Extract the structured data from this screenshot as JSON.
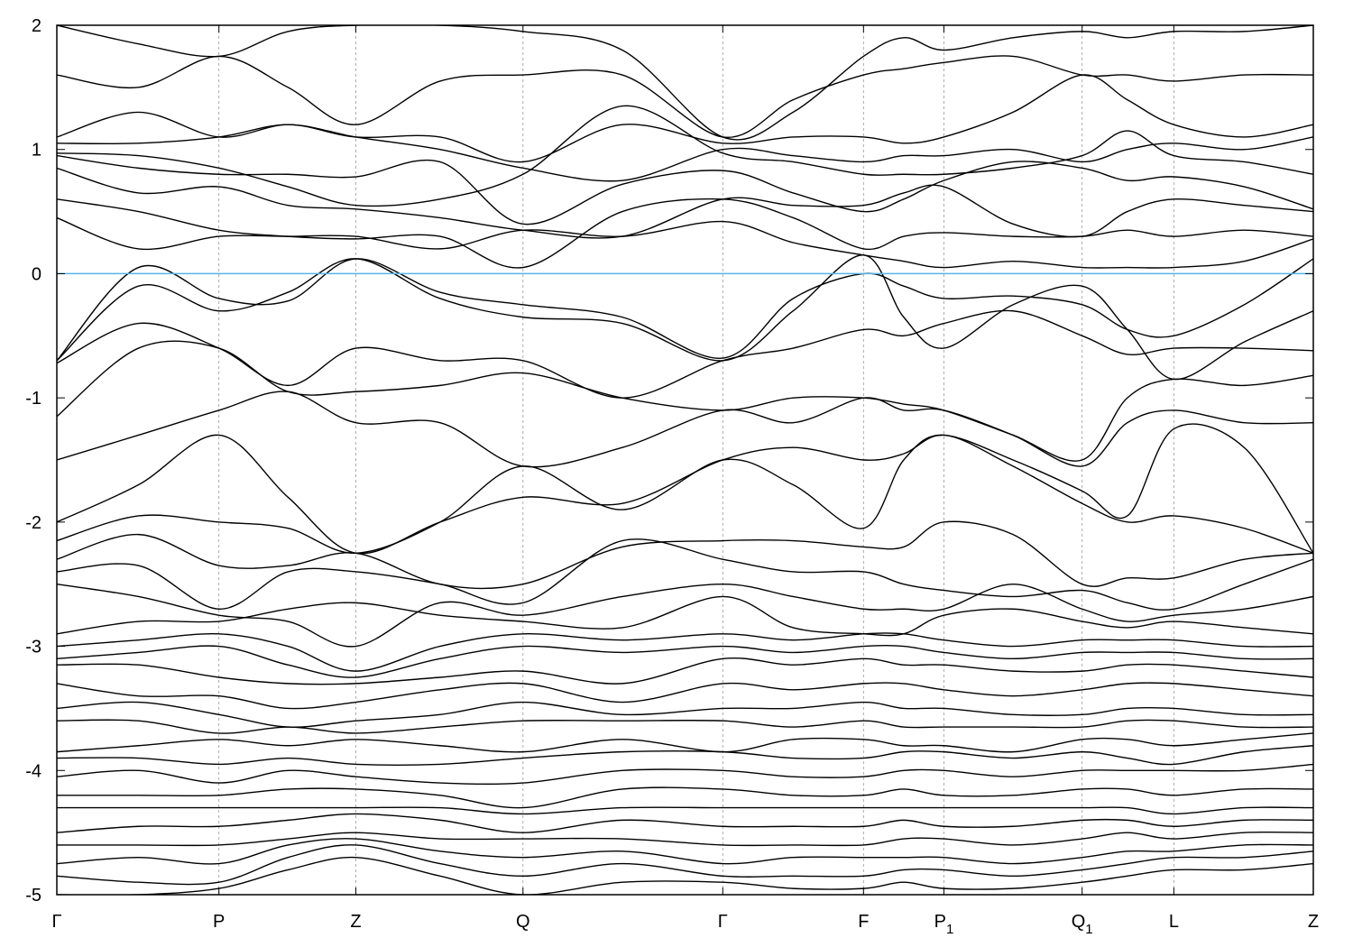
{
  "chart_data": {
    "type": "line",
    "title": "",
    "xlabel": "",
    "ylabel": "",
    "ylim": [
      -5,
      2
    ],
    "yticks": [
      "2",
      "1",
      "0",
      "-1",
      "-2",
      "-3",
      "-4",
      "-5"
    ],
    "ytick_values": [
      2,
      1,
      0,
      -1,
      -2,
      -3,
      -4,
      -5
    ],
    "grid": "vertical dashed lines at high-symmetry points",
    "kpoints": [
      {
        "label": "Γ",
        "sub": "",
        "k": 0
      },
      {
        "label": "P",
        "sub": "",
        "k": 1.29
      },
      {
        "label": "Z",
        "sub": "",
        "k": 2.38
      },
      {
        "label": "Q",
        "sub": "",
        "k": 3.71
      },
      {
        "label": "Γ",
        "sub": "",
        "k": 5.3
      },
      {
        "label": "F",
        "sub": "",
        "k": 6.42
      },
      {
        "label": "P",
        "sub": "1",
        "k": 7.06
      },
      {
        "label": "Q",
        "sub": "1",
        "k": 8.16
      },
      {
        "label": "L",
        "sub": "",
        "k": 8.89
      },
      {
        "label": "Z",
        "sub": "",
        "k": 10.0
      }
    ],
    "fermi_level": 0,
    "colors": {
      "bands": "#000000",
      "fermi_line": "#56b4e9",
      "grid": "#999999"
    },
    "x": [
      0,
      0.65,
      1.29,
      1.84,
      2.38,
      3.05,
      3.71,
      4.5,
      5.3,
      5.86,
      6.42,
      6.74,
      7.06,
      7.61,
      8.16,
      8.52,
      8.89,
      9.45,
      10.0
    ],
    "bands": [
      [
        2.0,
        1.85,
        1.75,
        1.95,
        2.0,
        2.0,
        1.95,
        1.8,
        1.1,
        1.3,
        1.75,
        1.9,
        1.8,
        1.9,
        1.95,
        1.9,
        1.95,
        1.95,
        2.0
      ],
      [
        1.6,
        1.5,
        1.75,
        1.5,
        1.2,
        1.55,
        1.6,
        1.6,
        1.1,
        1.4,
        1.6,
        1.65,
        1.7,
        1.75,
        1.6,
        1.6,
        1.55,
        1.6,
        1.6
      ],
      [
        1.1,
        1.3,
        1.1,
        1.2,
        1.1,
        1.1,
        0.9,
        1.2,
        1.05,
        1.1,
        1.1,
        1.05,
        1.1,
        1.3,
        1.6,
        1.4,
        1.2,
        1.1,
        1.2
      ],
      [
        1.05,
        1.05,
        1.1,
        1.2,
        1.1,
        1.0,
        0.85,
        0.75,
        1.0,
        0.95,
        0.9,
        0.95,
        0.95,
        1.0,
        0.9,
        1.0,
        1.05,
        1.0,
        1.1
      ],
      [
        0.97,
        0.95,
        0.85,
        0.7,
        0.55,
        0.6,
        0.8,
        1.35,
        0.97,
        0.9,
        0.8,
        0.8,
        0.8,
        0.85,
        0.95,
        1.15,
        0.95,
        0.9,
        0.8
      ],
      [
        0.95,
        0.85,
        0.8,
        0.8,
        0.78,
        0.9,
        0.4,
        0.72,
        0.83,
        0.65,
        0.5,
        0.6,
        0.75,
        0.9,
        0.85,
        0.75,
        0.78,
        0.7,
        0.52
      ],
      [
        0.85,
        0.65,
        0.7,
        0.55,
        0.52,
        0.45,
        0.35,
        0.3,
        0.6,
        0.55,
        0.55,
        0.65,
        0.7,
        0.4,
        0.3,
        0.5,
        0.6,
        0.55,
        0.5
      ],
      [
        0.6,
        0.5,
        0.35,
        0.3,
        0.28,
        0.3,
        0.05,
        0.5,
        0.6,
        0.45,
        0.2,
        0.3,
        0.33,
        0.3,
        0.3,
        0.35,
        0.3,
        0.35,
        0.3
      ],
      [
        0.45,
        0.2,
        0.3,
        0.3,
        0.3,
        0.2,
        0.35,
        0.3,
        0.42,
        0.25,
        0.15,
        0.1,
        0.05,
        0.1,
        0.05,
        0.05,
        0.05,
        0.1,
        0.28
      ],
      [
        -0.7,
        0.05,
        -0.2,
        -0.22,
        0.12,
        -0.15,
        -0.25,
        -0.35,
        -0.68,
        -0.2,
        0.0,
        -0.1,
        -0.2,
        -0.18,
        -0.25,
        -0.45,
        -0.5,
        -0.25,
        0.12
      ],
      [
        -0.7,
        -0.1,
        -0.3,
        -0.15,
        0.12,
        -0.2,
        -0.35,
        -0.4,
        -0.7,
        -0.3,
        0.15,
        -0.35,
        -0.6,
        -0.25,
        -0.1,
        -0.45,
        -0.85,
        -0.55,
        -0.3
      ],
      [
        -0.72,
        -0.4,
        -0.6,
        -0.9,
        -0.6,
        -0.7,
        -0.7,
        -1.0,
        -0.7,
        -0.6,
        -0.45,
        -0.5,
        -0.4,
        -0.3,
        -0.5,
        -0.65,
        -0.6,
        -0.6,
        -0.62
      ],
      [
        -1.15,
        -0.6,
        -0.6,
        -0.95,
        -0.95,
        -0.9,
        -0.8,
        -1.0,
        -1.1,
        -1.0,
        -1.0,
        -1.05,
        -1.1,
        -1.3,
        -1.5,
        -1.0,
        -0.85,
        -0.9,
        -0.82
      ],
      [
        -1.5,
        -1.3,
        -1.1,
        -0.95,
        -1.2,
        -1.2,
        -1.55,
        -1.4,
        -1.1,
        -1.2,
        -1.0,
        -1.1,
        -1.1,
        -1.3,
        -1.55,
        -1.2,
        -1.1,
        -1.2,
        -1.2
      ],
      [
        -2.0,
        -1.7,
        -1.3,
        -1.8,
        -2.25,
        -2.0,
        -1.8,
        -1.85,
        -1.5,
        -1.4,
        -1.5,
        -1.45,
        -1.3,
        -1.5,
        -1.75,
        -1.95,
        -1.25,
        -1.4,
        -2.25
      ],
      [
        -2.15,
        -1.95,
        -2.0,
        -2.05,
        -2.25,
        -2.0,
        -1.55,
        -1.9,
        -1.5,
        -1.7,
        -2.05,
        -1.5,
        -1.3,
        -1.55,
        -1.85,
        -2.0,
        -1.95,
        -2.05,
        -2.25
      ],
      [
        -2.3,
        -2.1,
        -2.35,
        -2.35,
        -2.25,
        -2.5,
        -2.5,
        -2.2,
        -2.15,
        -2.15,
        -2.2,
        -2.2,
        -2.0,
        -2.1,
        -2.5,
        -2.45,
        -2.45,
        -2.3,
        -2.25
      ],
      [
        -2.4,
        -2.35,
        -2.7,
        -2.4,
        -2.4,
        -2.5,
        -2.65,
        -2.15,
        -2.3,
        -2.4,
        -2.4,
        -2.5,
        -2.55,
        -2.6,
        -2.55,
        -2.65,
        -2.7,
        -2.5,
        -2.3
      ],
      [
        -2.5,
        -2.6,
        -2.75,
        -2.8,
        -3.0,
        -2.65,
        -2.75,
        -2.6,
        -2.5,
        -2.6,
        -2.7,
        -2.7,
        -2.7,
        -2.5,
        -2.7,
        -2.8,
        -2.75,
        -2.7,
        -2.6
      ],
      [
        -2.9,
        -2.8,
        -2.8,
        -2.7,
        -2.65,
        -2.75,
        -2.8,
        -2.85,
        -2.6,
        -2.85,
        -2.9,
        -2.9,
        -2.75,
        -2.7,
        -2.8,
        -2.85,
        -2.8,
        -2.85,
        -2.9
      ],
      [
        -3.0,
        -2.95,
        -2.9,
        -3.0,
        -3.2,
        -3.0,
        -2.9,
        -2.95,
        -2.9,
        -2.95,
        -2.9,
        -2.9,
        -2.95,
        -3.0,
        -2.95,
        -2.95,
        -2.95,
        -3.0,
        -3.0
      ],
      [
        -3.1,
        -3.05,
        -3.0,
        -3.15,
        -3.25,
        -3.1,
        -3.0,
        -3.05,
        -3.0,
        -3.05,
        -3.0,
        -3.0,
        -3.05,
        -3.1,
        -3.05,
        -3.05,
        -3.05,
        -3.1,
        -3.1
      ],
      [
        -3.15,
        -3.15,
        -3.25,
        -3.3,
        -3.3,
        -3.25,
        -3.2,
        -3.3,
        -3.1,
        -3.15,
        -3.1,
        -3.15,
        -3.15,
        -3.2,
        -3.2,
        -3.15,
        -3.15,
        -3.2,
        -3.25
      ],
      [
        -3.3,
        -3.4,
        -3.4,
        -3.5,
        -3.45,
        -3.35,
        -3.3,
        -3.45,
        -3.3,
        -3.35,
        -3.3,
        -3.3,
        -3.35,
        -3.4,
        -3.35,
        -3.3,
        -3.3,
        -3.35,
        -3.4
      ],
      [
        -3.5,
        -3.45,
        -3.55,
        -3.65,
        -3.6,
        -3.55,
        -3.45,
        -3.55,
        -3.5,
        -3.5,
        -3.45,
        -3.5,
        -3.5,
        -3.55,
        -3.55,
        -3.5,
        -3.5,
        -3.55,
        -3.55
      ],
      [
        -3.6,
        -3.6,
        -3.7,
        -3.65,
        -3.7,
        -3.65,
        -3.6,
        -3.6,
        -3.6,
        -3.65,
        -3.6,
        -3.65,
        -3.65,
        -3.65,
        -3.65,
        -3.6,
        -3.6,
        -3.65,
        -3.65
      ],
      [
        -3.85,
        -3.8,
        -3.75,
        -3.8,
        -3.75,
        -3.8,
        -3.85,
        -3.75,
        -3.85,
        -3.75,
        -3.75,
        -3.8,
        -3.8,
        -3.85,
        -3.75,
        -3.75,
        -3.8,
        -3.75,
        -3.7
      ],
      [
        -3.9,
        -3.9,
        -3.95,
        -3.9,
        -3.95,
        -3.95,
        -3.9,
        -3.85,
        -3.85,
        -3.9,
        -3.9,
        -3.85,
        -3.85,
        -3.9,
        -3.85,
        -3.9,
        -3.95,
        -3.85,
        -3.8
      ],
      [
        -4.05,
        -4.0,
        -4.1,
        -4.0,
        -4.05,
        -4.1,
        -4.1,
        -4.0,
        -4.0,
        -4.05,
        -4.05,
        -4.0,
        -4.0,
        -4.05,
        -4.0,
        -4.0,
        -4.0,
        -4.0,
        -3.95
      ],
      [
        -4.2,
        -4.2,
        -4.2,
        -4.15,
        -4.15,
        -4.2,
        -4.3,
        -4.15,
        -4.15,
        -4.2,
        -4.2,
        -4.15,
        -4.2,
        -4.2,
        -4.15,
        -4.15,
        -4.2,
        -4.15,
        -4.15
      ],
      [
        -4.3,
        -4.3,
        -4.3,
        -4.3,
        -4.3,
        -4.3,
        -4.35,
        -4.3,
        -4.3,
        -4.3,
        -4.3,
        -4.3,
        -4.3,
        -4.3,
        -4.3,
        -4.3,
        -4.35,
        -4.3,
        -4.3
      ],
      [
        -4.5,
        -4.45,
        -4.45,
        -4.4,
        -4.35,
        -4.4,
        -4.5,
        -4.4,
        -4.45,
        -4.45,
        -4.45,
        -4.4,
        -4.45,
        -4.45,
        -4.4,
        -4.4,
        -4.45,
        -4.4,
        -4.4
      ],
      [
        -4.6,
        -4.6,
        -4.6,
        -4.55,
        -4.5,
        -4.55,
        -4.55,
        -4.55,
        -4.6,
        -4.6,
        -4.6,
        -4.55,
        -4.55,
        -4.6,
        -4.55,
        -4.5,
        -4.55,
        -4.5,
        -4.5
      ],
      [
        -4.75,
        -4.7,
        -4.75,
        -4.6,
        -4.55,
        -4.65,
        -4.7,
        -4.65,
        -4.75,
        -4.7,
        -4.7,
        -4.7,
        -4.7,
        -4.75,
        -4.7,
        -4.65,
        -4.65,
        -4.6,
        -4.6
      ],
      [
        -4.85,
        -4.9,
        -4.9,
        -4.7,
        -4.6,
        -4.75,
        -4.85,
        -4.75,
        -4.85,
        -4.85,
        -4.85,
        -4.8,
        -4.8,
        -4.85,
        -4.8,
        -4.75,
        -4.7,
        -4.7,
        -4.65
      ],
      [
        -5.0,
        -5.0,
        -4.95,
        -4.8,
        -4.7,
        -4.85,
        -5.0,
        -4.9,
        -4.9,
        -4.95,
        -4.95,
        -4.9,
        -4.95,
        -4.95,
        -4.9,
        -4.85,
        -4.8,
        -4.8,
        -4.75
      ]
    ]
  }
}
